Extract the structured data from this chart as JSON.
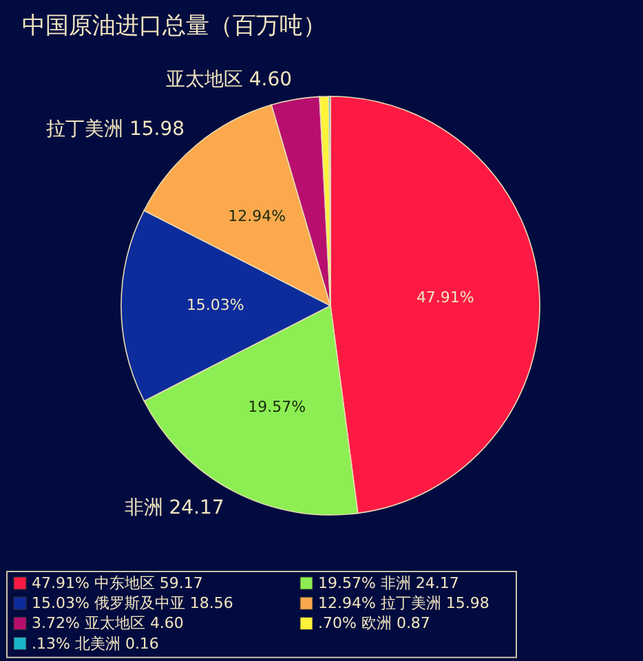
{
  "chart_data": {
    "type": "pie",
    "title": "中国原油进口总量（百万吨）",
    "categories": [
      "47.91% 中东地区 59.17",
      "19.57% 非洲 24.17",
      "15.03% 俄罗斯及中亚 18.56",
      "12.94% 拉丁美洲 15.98",
      "3.72% 亚太地区 4.60",
      ".70% 欧洲 0.87",
      ".13% 北美洲 0.16"
    ],
    "values": [
      47.91,
      19.57,
      15.03,
      12.94,
      3.72,
      0.7,
      0.13
    ],
    "colors": [
      "#fc1a44",
      "#8cee52",
      "#0d2c9b",
      "#fba94c",
      "#b80f6e",
      "#fff23a",
      "#1ab3c8"
    ],
    "value_labels": [
      "47.91%",
      "19.57%",
      "15.03%",
      "12.94%",
      null,
      null,
      null
    ],
    "annotations": [
      {
        "text": "非洲 24.17",
        "x": "19.57% 非洲 24.17"
      },
      {
        "text": "拉丁美洲 15.98",
        "x": "12.94% 拉丁美洲 15.98"
      },
      {
        "text": "亚太地区 4.60",
        "x": "3.72% 亚太地区 4.60"
      }
    ],
    "legend": "bottom"
  }
}
